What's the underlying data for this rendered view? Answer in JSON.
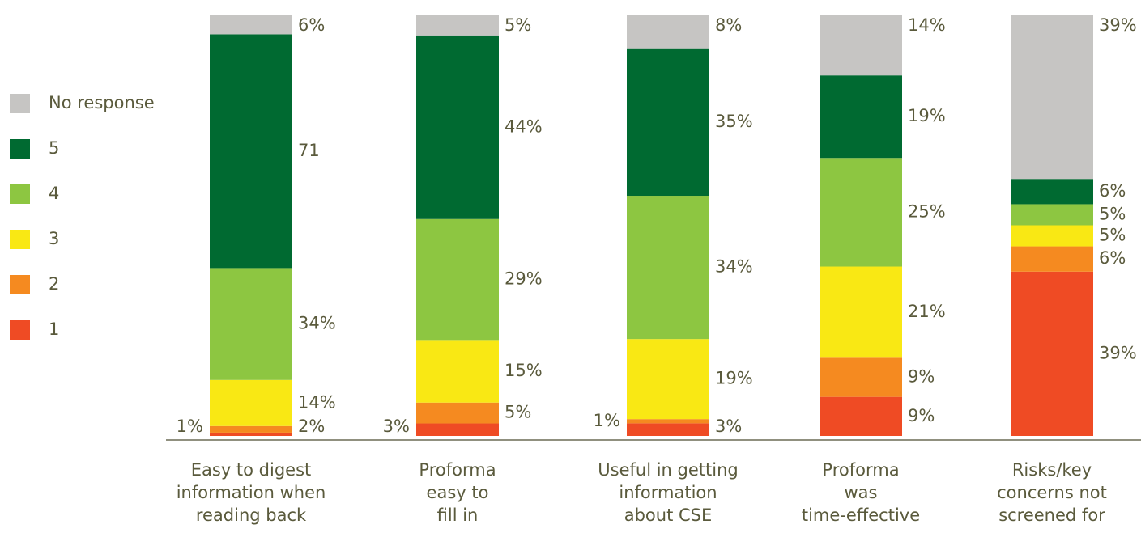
{
  "chart_data": {
    "type": "bar",
    "stacked": "percent",
    "categories": [
      [
        "Easy to digest",
        "information when",
        "reading back"
      ],
      [
        "Proforma",
        "easy to",
        "fill in"
      ],
      [
        "Useful in getting",
        "information",
        "about CSE"
      ],
      [
        "Proforma",
        "was",
        "time-effective"
      ],
      [
        "Risks/key",
        "concerns not",
        "screened for"
      ]
    ],
    "series": [
      {
        "name": "1",
        "color": "#ef4b24",
        "values": [
          1,
          3,
          3,
          9,
          39
        ],
        "value_labels": [
          "1%",
          "3%",
          "3%",
          "9%",
          "39%"
        ]
      },
      {
        "name": "2",
        "color": "#f58a20",
        "values": [
          2,
          5,
          1,
          9,
          6
        ],
        "value_labels": [
          "2%",
          "5%",
          "1%",
          "9%",
          "6%"
        ]
      },
      {
        "name": "3",
        "color": "#f9e814",
        "values": [
          14,
          15,
          19,
          21,
          5
        ],
        "value_labels": [
          "14%",
          "15%",
          "19%",
          "21%",
          "5%"
        ]
      },
      {
        "name": "4",
        "color": "#8dc641",
        "values": [
          34,
          29,
          34,
          25,
          5
        ],
        "value_labels": [
          "34%",
          "29%",
          "34%",
          "25%",
          "5%"
        ]
      },
      {
        "name": "5",
        "color": "#006a31",
        "values": [
          71,
          44,
          35,
          19,
          6
        ],
        "value_labels": [
          "71",
          "44%",
          "35%",
          "19%",
          "6%"
        ]
      },
      {
        "name": "No response",
        "color": "#c6c5c3",
        "values": [
          6,
          5,
          8,
          14,
          39
        ],
        "value_labels": [
          "6%",
          "5%",
          "8%",
          "14%",
          "39%"
        ]
      }
    ],
    "legend": "left"
  }
}
